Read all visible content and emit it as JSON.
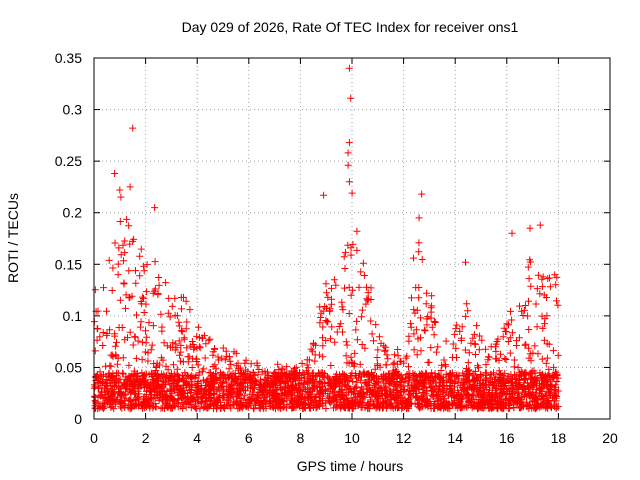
{
  "chart_data": {
    "type": "scatter",
    "title": "Day 029 of 2026, Rate Of TEC Index for receiver ons1",
    "xlabel": "GPS time / hours",
    "ylabel": "ROTI / TECUs",
    "xlim": [
      0,
      20
    ],
    "ylim": [
      0,
      0.35
    ],
    "x_ticks": [
      0,
      2,
      4,
      6,
      8,
      10,
      12,
      14,
      16,
      18,
      20
    ],
    "x_tick_labels": [
      "0",
      "2",
      "4",
      "6",
      "8",
      "10",
      "12",
      "14",
      "16",
      "18",
      "20"
    ],
    "y_ticks": [
      0,
      0.05,
      0.1,
      0.15,
      0.2,
      0.25,
      0.3,
      0.35
    ],
    "y_tick_labels": [
      "0",
      "0.05",
      "0.1",
      "0.15",
      "0.2",
      "0.25",
      "0.3",
      "0.35"
    ],
    "grid": true,
    "marker": "+",
    "marker_color": "#ff0000",
    "data_span_hours": [
      0,
      18
    ],
    "envelope": {
      "x": [
        0,
        0.5,
        1.0,
        1.5,
        2.0,
        2.5,
        3.0,
        3.5,
        4.0,
        5.0,
        6.0,
        7.0,
        8.0,
        8.5,
        9.0,
        9.5,
        10.0,
        10.5,
        11.0,
        11.5,
        12.0,
        12.5,
        13.0,
        13.5,
        14.0,
        14.5,
        15.0,
        15.5,
        16.0,
        16.5,
        17.0,
        17.5,
        18.0
      ],
      "y": [
        0.14,
        0.17,
        0.22,
        0.18,
        0.16,
        0.15,
        0.14,
        0.12,
        0.09,
        0.07,
        0.06,
        0.055,
        0.05,
        0.08,
        0.15,
        0.13,
        0.22,
        0.16,
        0.1,
        0.06,
        0.08,
        0.18,
        0.14,
        0.07,
        0.09,
        0.12,
        0.08,
        0.07,
        0.1,
        0.12,
        0.17,
        0.15,
        0.14
      ]
    },
    "notable_points": [
      {
        "x": 1.5,
        "y": 0.282
      },
      {
        "x": 9.9,
        "y": 0.34
      },
      {
        "x": 9.95,
        "y": 0.311
      },
      {
        "x": 9.9,
        "y": 0.268
      },
      {
        "x": 9.85,
        "y": 0.258
      },
      {
        "x": 9.85,
        "y": 0.246
      },
      {
        "x": 9.9,
        "y": 0.23
      },
      {
        "x": 0.8,
        "y": 0.238
      },
      {
        "x": 1.0,
        "y": 0.222
      },
      {
        "x": 1.4,
        "y": 0.225
      },
      {
        "x": 2.35,
        "y": 0.205
      },
      {
        "x": 8.9,
        "y": 0.217
      },
      {
        "x": 12.7,
        "y": 0.218
      },
      {
        "x": 12.6,
        "y": 0.195
      },
      {
        "x": 17.3,
        "y": 0.188
      },
      {
        "x": 16.9,
        "y": 0.185
      },
      {
        "x": 16.2,
        "y": 0.18
      },
      {
        "x": 14.4,
        "y": 0.152
      }
    ]
  }
}
